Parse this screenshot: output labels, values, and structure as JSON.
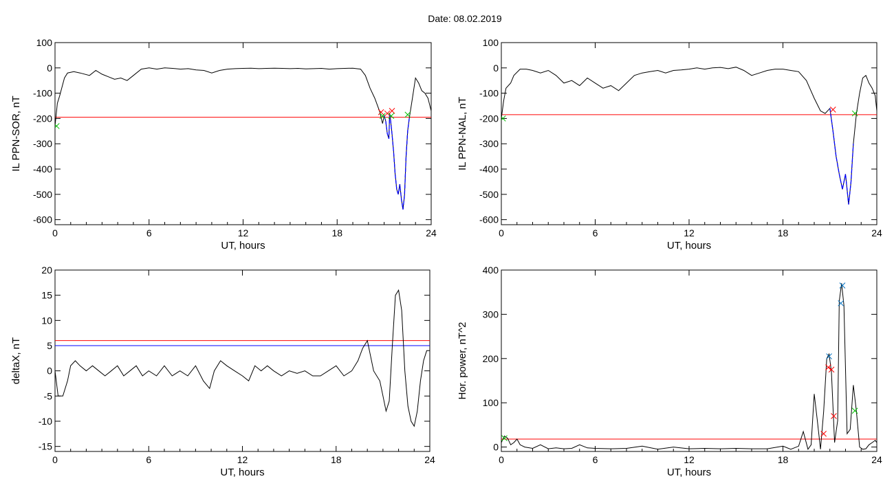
{
  "page": {
    "date_label": "Date:",
    "date_value": "08.02.2019"
  },
  "colors": {
    "threshold": "#ff0000",
    "threshold2": "#0000ff",
    "trace": "#000000",
    "highlight": "#0000ff",
    "marker_red": "#ff0000",
    "marker_green": "#00c000",
    "marker_blue": "#0070c0"
  },
  "chart_data": [
    {
      "id": "sor",
      "type": "line",
      "xlabel": "UT, hours",
      "ylabel": "IL PPN-SOR, nT",
      "xlim": [
        0,
        24
      ],
      "ylim": [
        -620,
        100
      ],
      "xticks": [
        0,
        6,
        12,
        18,
        24
      ],
      "yticks": [
        100,
        0,
        -100,
        -200,
        -300,
        -400,
        -500,
        -600
      ],
      "threshold": -195,
      "series": [
        {
          "x": [
            0,
            0.15,
            0.3,
            0.6,
            0.8,
            1.2,
            1.6,
            2.2,
            2.6,
            3.0,
            3.4,
            3.8,
            4.2,
            4.6,
            5.0,
            5.5,
            6.0,
            6.5,
            7.0,
            7.5,
            8.0,
            8.5,
            9.0,
            9.5,
            10.0,
            10.5,
            11.0,
            11.5,
            12.0,
            12.5,
            13.0,
            13.5,
            14.0,
            14.5,
            15.0,
            15.5,
            16.0,
            16.5,
            17.0,
            17.5,
            18.0,
            18.5,
            19.0,
            19.5,
            19.8,
            20.1,
            20.4,
            20.7,
            20.9,
            21.0,
            21.1,
            21.2,
            21.3,
            21.35,
            21.4,
            21.5,
            21.6,
            21.7,
            21.8,
            21.9,
            22.0,
            22.1,
            22.2,
            22.3,
            22.4,
            22.5,
            22.6,
            22.8,
            23.0,
            23.2,
            23.4,
            23.6,
            23.8,
            24.0
          ],
          "y": [
            -230,
            -140,
            -110,
            -40,
            -20,
            -15,
            -20,
            -30,
            -10,
            -25,
            -35,
            -45,
            -40,
            -50,
            -30,
            -5,
            0,
            -5,
            0,
            -2,
            -5,
            -3,
            -8,
            -10,
            -20,
            -10,
            -5,
            -3,
            -2,
            -1,
            -3,
            -2,
            -1,
            -2,
            -3,
            -2,
            -4,
            -3,
            -2,
            -5,
            -3,
            -2,
            -1,
            -5,
            -30,
            -80,
            -120,
            -170,
            -220,
            -190,
            -210,
            -260,
            -280,
            -180,
            -200,
            -260,
            -330,
            -420,
            -480,
            -500,
            -460,
            -520,
            -560,
            -500,
            -350,
            -250,
            -200,
            -120,
            -40,
            -60,
            -90,
            -100,
            -120,
            -170
          ]
        }
      ],
      "highlight": {
        "x_start": 21.0,
        "x_end": 22.6
      },
      "markers_red": [
        [
          20.8,
          -175
        ],
        [
          21.2,
          -180
        ],
        [
          21.5,
          -170
        ]
      ],
      "markers_green": [
        [
          0.1,
          -230
        ],
        [
          20.9,
          -190
        ],
        [
          21.45,
          -190
        ],
        [
          22.5,
          -185
        ]
      ]
    },
    {
      "id": "nal",
      "type": "line",
      "xlabel": "UT, hours",
      "ylabel": "IL PPN-NAL, nT",
      "xlim": [
        0,
        24
      ],
      "ylim": [
        -620,
        100
      ],
      "xticks": [
        0,
        6,
        12,
        18,
        24
      ],
      "yticks": [
        100,
        0,
        -100,
        -200,
        -300,
        -400,
        -500,
        -600
      ],
      "threshold": -185,
      "series": [
        {
          "x": [
            0,
            0.15,
            0.3,
            0.6,
            0.8,
            1.2,
            1.6,
            2.0,
            2.5,
            3.0,
            3.5,
            4.0,
            4.5,
            5.0,
            5.5,
            6.0,
            6.5,
            7.0,
            7.5,
            8.0,
            8.5,
            9.0,
            9.5,
            10.0,
            10.5,
            11.0,
            11.5,
            12.0,
            12.5,
            13.0,
            13.5,
            14.0,
            14.5,
            15.0,
            15.5,
            16.0,
            16.5,
            17.0,
            17.5,
            18.0,
            18.5,
            19.0,
            19.5,
            20.0,
            20.4,
            20.7,
            21.0,
            21.2,
            21.4,
            21.6,
            21.8,
            22.0,
            22.2,
            22.35,
            22.5,
            22.7,
            22.9,
            23.1,
            23.3,
            23.5,
            23.7,
            23.9,
            24.0
          ],
          "y": [
            -200,
            -130,
            -80,
            -60,
            -30,
            -5,
            -5,
            -10,
            -20,
            -10,
            -30,
            -60,
            -50,
            -70,
            -40,
            -60,
            -80,
            -70,
            -90,
            -60,
            -30,
            -20,
            -15,
            -10,
            -20,
            -10,
            -8,
            -5,
            0,
            -5,
            0,
            2,
            -3,
            3,
            -10,
            -30,
            -20,
            -10,
            -5,
            -5,
            -10,
            -15,
            -50,
            -120,
            -170,
            -180,
            -160,
            -250,
            -350,
            -420,
            -480,
            -420,
            -540,
            -450,
            -300,
            -180,
            -100,
            -40,
            -30,
            -60,
            -80,
            -110,
            -170
          ]
        }
      ],
      "highlight": {
        "x_start": 21.0,
        "x_end": 22.5
      },
      "markers_red": [
        [
          21.2,
          -165
        ]
      ],
      "markers_green": [
        [
          0.1,
          -200
        ],
        [
          22.6,
          -180
        ]
      ]
    },
    {
      "id": "deltax",
      "type": "line",
      "xlabel": "UT, hours",
      "ylabel": "deltaX, nT",
      "xlim": [
        0,
        24
      ],
      "ylim": [
        -16,
        20
      ],
      "xticks": [
        0,
        6,
        12,
        18,
        24
      ],
      "yticks": [
        20,
        15,
        10,
        5,
        0,
        -5,
        -10,
        -15
      ],
      "threshold": 6,
      "threshold2": 5,
      "series": [
        {
          "x": [
            0,
            0.2,
            0.5,
            0.8,
            1.0,
            1.3,
            1.6,
            2.0,
            2.4,
            2.8,
            3.2,
            3.6,
            4.0,
            4.4,
            4.8,
            5.2,
            5.6,
            6.0,
            6.5,
            7.0,
            7.5,
            8.0,
            8.5,
            9.0,
            9.5,
            9.9,
            10.2,
            10.6,
            11.0,
            11.5,
            12.0,
            12.4,
            12.8,
            13.2,
            13.6,
            14.0,
            14.5,
            15.0,
            15.5,
            16.0,
            16.5,
            17.0,
            17.5,
            18.0,
            18.5,
            19.0,
            19.4,
            19.7,
            20.0,
            20.4,
            20.8,
            21.0,
            21.2,
            21.4,
            21.6,
            21.8,
            22.0,
            22.2,
            22.4,
            22.6,
            22.8,
            23.0,
            23.2,
            23.4,
            23.6,
            23.8,
            24.0
          ],
          "y": [
            0,
            -5,
            -5,
            -2,
            1,
            2,
            1,
            0,
            1,
            0,
            -1,
            0,
            1,
            -1,
            0,
            1,
            -1,
            0,
            -1,
            1,
            -1,
            0,
            -1,
            1,
            -2,
            -3.5,
            0,
            2,
            1,
            0,
            -1,
            -2,
            1,
            0,
            1,
            0,
            -1,
            0,
            -0.5,
            0,
            -1,
            -1,
            0,
            1,
            -1,
            0,
            2,
            4.5,
            6,
            0,
            -2,
            -5,
            -8,
            -6,
            5,
            15,
            16,
            12,
            0,
            -7,
            -10,
            -11,
            -8,
            -2,
            2,
            4,
            4
          ]
        }
      ]
    },
    {
      "id": "power",
      "type": "line",
      "xlabel": "UT, hours",
      "ylabel": "Hor. power, nT^2",
      "xlim": [
        0,
        24
      ],
      "ylim": [
        -10,
        400
      ],
      "xticks": [
        0,
        6,
        12,
        18,
        24
      ],
      "yticks": [
        400,
        300,
        200,
        100,
        0
      ],
      "threshold": 18,
      "series": [
        {
          "x": [
            0,
            0.2,
            0.4,
            0.6,
            0.8,
            1.0,
            1.2,
            1.5,
            2.0,
            2.5,
            3.0,
            3.5,
            4.0,
            4.5,
            5.0,
            5.5,
            6.0,
            7.0,
            8.0,
            9.0,
            10.0,
            11.0,
            12.0,
            13.0,
            14.0,
            15.0,
            16.0,
            17.0,
            18.0,
            18.5,
            19.0,
            19.3,
            19.6,
            19.8,
            20.0,
            20.2,
            20.4,
            20.6,
            20.8,
            20.95,
            21.1,
            21.3,
            21.5,
            21.6,
            21.75,
            21.9,
            22.1,
            22.3,
            22.5,
            22.7,
            22.9,
            23.1,
            23.3,
            23.5,
            23.7,
            23.9,
            24.0
          ],
          "y": [
            10,
            25,
            20,
            5,
            10,
            18,
            5,
            0,
            -3,
            5,
            -4,
            -2,
            -4,
            -3,
            5,
            -2,
            -3,
            -4,
            -3,
            2,
            -5,
            0,
            -4,
            -3,
            -4,
            -3,
            -4,
            -4,
            2,
            -5,
            2,
            35,
            -5,
            5,
            120,
            60,
            -5,
            80,
            200,
            210,
            170,
            10,
            60,
            330,
            370,
            320,
            30,
            40,
            140,
            80,
            0,
            -5,
            -4,
            5,
            10,
            15,
            10
          ]
        }
      ],
      "markers_red": [
        [
          20.6,
          30
        ],
        [
          20.9,
          180
        ],
        [
          21.1,
          175
        ],
        [
          21.25,
          70
        ]
      ],
      "markers_blue": [
        [
          20.95,
          205
        ],
        [
          21.7,
          325
        ],
        [
          21.8,
          365
        ]
      ],
      "markers_green": [
        [
          0.2,
          20
        ],
        [
          22.6,
          82
        ]
      ]
    }
  ]
}
